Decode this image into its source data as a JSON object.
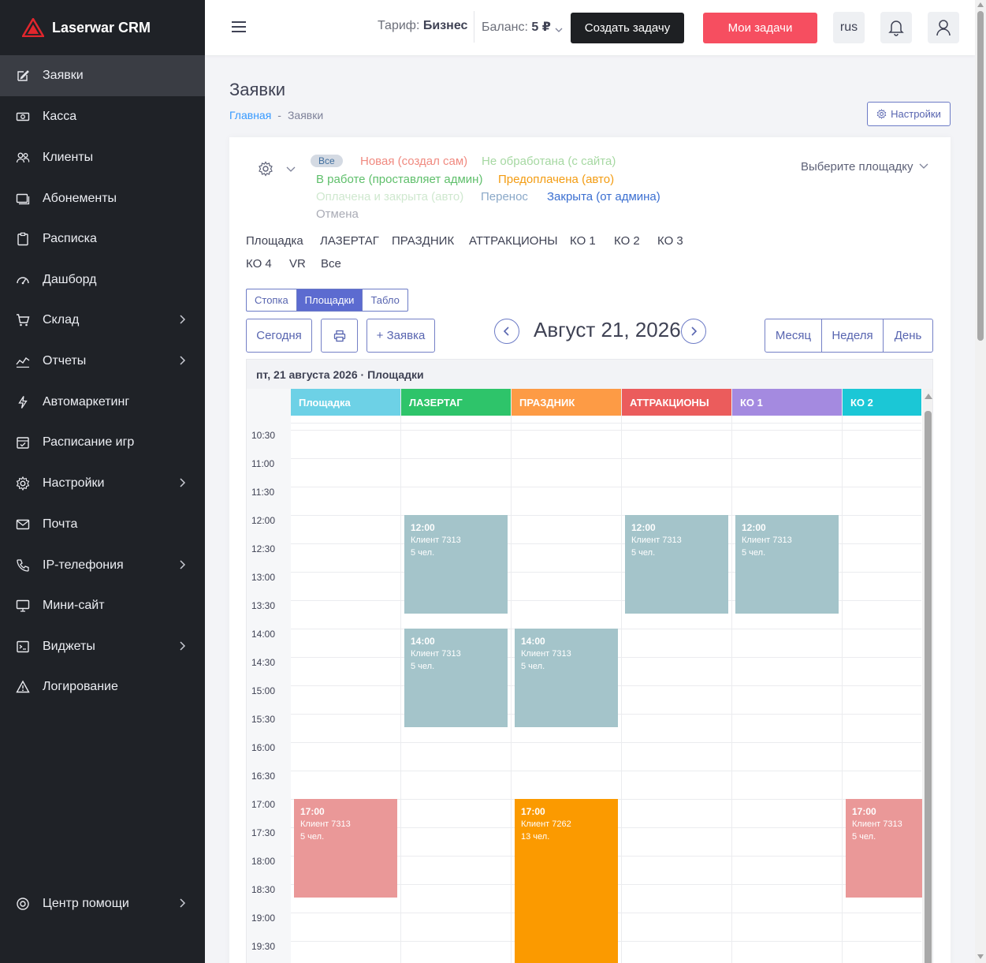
{
  "app": {
    "brand": "Laserwar CRM"
  },
  "sidebar": {
    "items": [
      {
        "label": "Заявки",
        "icon": "edit-icon",
        "active": true,
        "chevron": false
      },
      {
        "label": "Касса",
        "icon": "cash-icon",
        "chevron": false
      },
      {
        "label": "Клиенты",
        "icon": "users-icon",
        "chevron": false
      },
      {
        "label": "Абонементы",
        "icon": "card-icon",
        "chevron": false
      },
      {
        "label": "Расписка",
        "icon": "clipboard-icon",
        "chevron": false
      },
      {
        "label": "Дашборд",
        "icon": "dashboard-icon",
        "chevron": false
      },
      {
        "label": "Склад",
        "icon": "cart-icon",
        "chevron": true
      },
      {
        "label": "Отчеты",
        "icon": "chart-icon",
        "chevron": true
      },
      {
        "label": "Автомаркетинг",
        "icon": "lightning-icon",
        "chevron": false
      },
      {
        "label": "Расписание игр",
        "icon": "calendar-check-icon",
        "chevron": false
      },
      {
        "label": "Настройки",
        "icon": "gear-icon",
        "chevron": true
      },
      {
        "label": "Почта",
        "icon": "mail-icon",
        "chevron": false
      },
      {
        "label": "IP-телефония",
        "icon": "phone-icon",
        "chevron": true
      },
      {
        "label": "Мини-сайт",
        "icon": "monitor-icon",
        "chevron": false
      },
      {
        "label": "Виджеты",
        "icon": "widget-icon",
        "chevron": true
      },
      {
        "label": "Логирование",
        "icon": "warning-icon",
        "chevron": false
      }
    ],
    "help": {
      "label": "Центр помощи",
      "icon": "lifebuoy-icon"
    }
  },
  "header": {
    "tariff_label": "Тариф:",
    "tariff_value": "Бизнес",
    "balance_label": "Баланс:",
    "balance_value": "5 ₽",
    "create_task": "Создать задачу",
    "my_tasks": "Мои задачи",
    "lang": "rus"
  },
  "page": {
    "title": "Заявки",
    "breadcrumb_home": "Главная",
    "breadcrumb_sep": "-",
    "breadcrumb_current": "Заявки",
    "settings_button": "Настройки"
  },
  "filters": {
    "statuses": [
      {
        "label": "Все",
        "color": "#3f6e9e"
      },
      {
        "label": "Новая (создал сам)",
        "color": "#f08a80"
      },
      {
        "label": "Не обработана (с сайта)",
        "color": "#a6d8a2"
      },
      {
        "label": "В работе (проставляет админ)",
        "color": "#5fbf6b"
      },
      {
        "label": "Предоплачена (авто)",
        "color": "#f39c12"
      },
      {
        "label": "Оплачена и закрыта (авто)",
        "color": "#cfe8cf"
      },
      {
        "label": "Перенос",
        "color": "#8aa8c8"
      },
      {
        "label": "Закрыта (от админа)",
        "color": "#3b6fd1"
      },
      {
        "label": "Отмена",
        "color": "#a9abb5"
      }
    ],
    "venue_select": "Выберите площадку",
    "venue_tabs": [
      "Площадка",
      "ЛАЗЕРТАГ",
      "ПРАЗДНИК",
      "АТТРАКЦИОНЫ",
      "КО 1",
      "КО 2",
      "КО 3",
      "КО 4",
      "VR",
      "Все"
    ],
    "view_modes": [
      "Стопка",
      "Площадки",
      "Табло"
    ],
    "active_view_mode": "Площадки"
  },
  "toolbar": {
    "today": "Сегодня",
    "add_request": "+ Заявка",
    "date_title": "Август 21, 2026",
    "range_views": [
      "Месяц",
      "Неделя",
      "День"
    ]
  },
  "calendar": {
    "day_header": "пт, 21 августа 2026 · Площадки",
    "columns": [
      {
        "name": "Площадка",
        "color": "#6dd1e6"
      },
      {
        "name": "ЛАЗЕРТАГ",
        "color": "#2ec46a"
      },
      {
        "name": "ПРАЗДНИК",
        "color": "#fd9b45"
      },
      {
        "name": "АТТРАКЦИОНЫ",
        "color": "#eb5c5c"
      },
      {
        "name": "КО 1",
        "color": "#a48ae0"
      },
      {
        "name": "КО 2",
        "color": "#1bc7d6"
      }
    ],
    "times": [
      "10:30",
      "11:00",
      "11:30",
      "12:00",
      "12:30",
      "13:00",
      "13:30",
      "14:00",
      "14:30",
      "15:00",
      "15:30",
      "16:00",
      "16:30",
      "17:00",
      "17:30",
      "18:00",
      "18:30",
      "19:00",
      "19:30"
    ],
    "events": [
      {
        "col": 1,
        "start": "12:00",
        "end": "13:45",
        "time": "12:00",
        "client": "Клиент 7313",
        "people": "5 чел.",
        "color": "#a4c4ca"
      },
      {
        "col": 3,
        "start": "12:00",
        "end": "13:45",
        "time": "12:00",
        "client": "Клиент 7313",
        "people": "5 чел.",
        "color": "#a4c4ca"
      },
      {
        "col": 4,
        "start": "12:00",
        "end": "13:45",
        "time": "12:00",
        "client": "Клиент 7313",
        "people": "5 чел.",
        "color": "#a4c4ca"
      },
      {
        "col": 1,
        "start": "14:00",
        "end": "15:45",
        "time": "14:00",
        "client": "Клиент 7313",
        "people": "5 чел.",
        "color": "#a4c4ca"
      },
      {
        "col": 2,
        "start": "14:00",
        "end": "15:45",
        "time": "14:00",
        "client": "Клиент 7313",
        "people": "5 чел.",
        "color": "#a4c4ca"
      },
      {
        "col": 0,
        "start": "17:00",
        "end": "18:45",
        "time": "17:00",
        "client": "Клиент 7313",
        "people": "5 чел.",
        "color": "#ea9898"
      },
      {
        "col": 2,
        "start": "17:00",
        "end": "20:00",
        "time": "17:00",
        "client": "Клиент 7262",
        "people": "13 чел.",
        "color": "#fb9a00"
      },
      {
        "col": 5,
        "start": "17:00",
        "end": "18:45",
        "time": "17:00",
        "client": "Клиент 7313",
        "people": "5 чел.",
        "color": "#ea9898"
      }
    ]
  }
}
